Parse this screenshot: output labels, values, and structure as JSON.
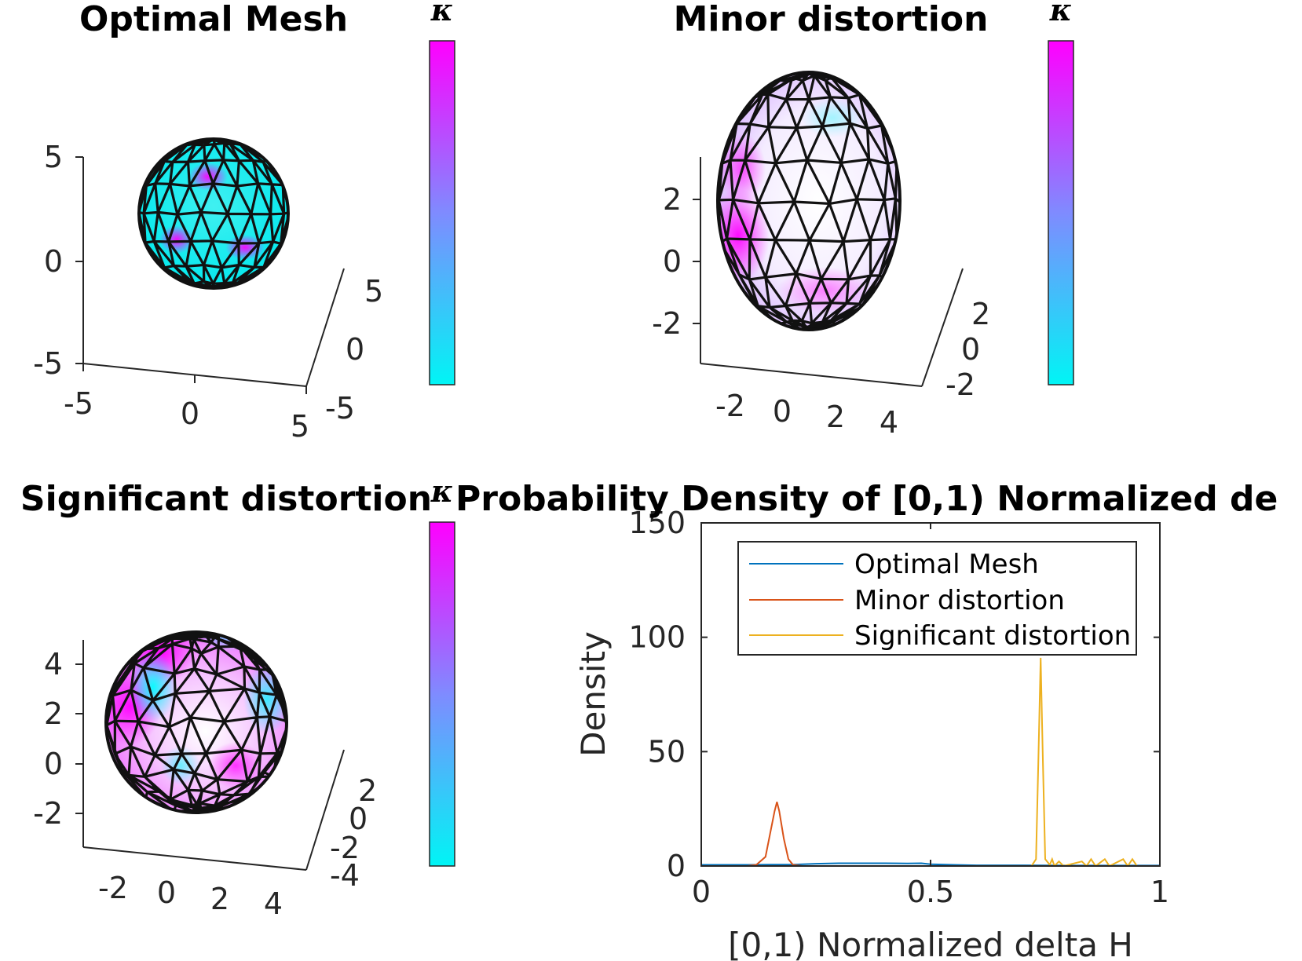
{
  "colors": {
    "kappa_low": "#00f5f5",
    "kappa_mid": "#7f8bff",
    "kappa_high": "#ff00ff",
    "series_blue": "#0072bd",
    "series_orange": "#d95319",
    "series_yellow": "#edb120"
  },
  "colorbar_label": "κ",
  "chart_data": [
    {
      "type": "surface",
      "title": "Optimal Mesh",
      "shape": "sphere",
      "coloring": "mostly cyan with small magenta patches",
      "z_ticks": [
        "5",
        "0",
        "-5"
      ],
      "x_ticks": [
        "-5",
        "0",
        "5"
      ],
      "y_ticks": [
        "5",
        "0",
        "-5"
      ],
      "colorbar": "κ"
    },
    {
      "type": "surface",
      "title": "Minor distortion",
      "shape": "ellipsoid",
      "coloring": "mostly white-lavender with magenta on left side",
      "z_ticks": [
        "2",
        "0",
        "-2"
      ],
      "x_ticks": [
        "-2",
        "0",
        "2",
        "4"
      ],
      "y_ticks": [
        "2",
        "0",
        "-2"
      ],
      "colorbar": "κ"
    },
    {
      "type": "surface",
      "title": "Significant distortion",
      "shape": "distorted sphere",
      "coloring": "mixed magenta, white and cyan",
      "z_ticks": [
        "4",
        "2",
        "0",
        "-2"
      ],
      "x_ticks": [
        "-2",
        "0",
        "2",
        "4"
      ],
      "y_ticks": [
        "2",
        "0",
        "-2",
        "-4"
      ],
      "colorbar": "κ"
    },
    {
      "type": "line",
      "title": "Probability Density of [0,1) Normalized de",
      "xlabel": "[0,1) Normalized delta H",
      "ylabel": "Density",
      "xlim": [
        0,
        1
      ],
      "ylim": [
        0,
        150
      ],
      "x_ticks": [
        "0",
        "0.5",
        "1"
      ],
      "y_ticks": [
        "0",
        "50",
        "100",
        "150"
      ],
      "legend_position": "top-right",
      "series": [
        {
          "name": "Optimal Mesh",
          "color": "#0072bd",
          "points": [
            [
              0,
              0.5
            ],
            [
              0.1,
              0.5
            ],
            [
              0.15,
              0.6
            ],
            [
              0.2,
              0.6
            ],
            [
              0.25,
              1
            ],
            [
              0.3,
              1.2
            ],
            [
              0.35,
              1.2
            ],
            [
              0.4,
              1.2
            ],
            [
              0.45,
              1.1
            ],
            [
              0.48,
              1.2
            ],
            [
              0.5,
              0.8
            ],
            [
              0.55,
              0.5
            ],
            [
              0.6,
              0.3
            ],
            [
              0.7,
              0.3
            ],
            [
              0.8,
              0.2
            ],
            [
              0.9,
              0.2
            ],
            [
              1,
              0.2
            ]
          ]
        },
        {
          "name": "Minor distortion",
          "color": "#d95319",
          "points": [
            [
              0,
              0
            ],
            [
              0.1,
              0
            ],
            [
              0.12,
              0.5
            ],
            [
              0.14,
              4
            ],
            [
              0.15,
              14
            ],
            [
              0.16,
              24
            ],
            [
              0.165,
              28
            ],
            [
              0.17,
              24
            ],
            [
              0.18,
              12
            ],
            [
              0.19,
              3
            ],
            [
              0.2,
              0.5
            ],
            [
              0.22,
              0
            ],
            [
              0.5,
              0
            ],
            [
              0.6,
              0
            ],
            [
              0.7,
              0
            ],
            [
              1,
              0
            ]
          ]
        },
        {
          "name": "Significant distortion",
          "color": "#edb120",
          "points": [
            [
              0,
              0
            ],
            [
              0.5,
              0
            ],
            [
              0.72,
              0
            ],
            [
              0.73,
              3
            ],
            [
              0.735,
              45
            ],
            [
              0.74,
              91
            ],
            [
              0.745,
              45
            ],
            [
              0.75,
              3
            ],
            [
              0.76,
              0.5
            ],
            [
              0.765,
              3
            ],
            [
              0.77,
              0
            ],
            [
              0.78,
              2
            ],
            [
              0.79,
              0
            ],
            [
              0.83,
              2
            ],
            [
              0.84,
              0
            ],
            [
              0.85,
              3
            ],
            [
              0.86,
              0
            ],
            [
              0.88,
              3
            ],
            [
              0.89,
              0
            ],
            [
              0.92,
              3
            ],
            [
              0.93,
              0
            ],
            [
              0.94,
              3
            ],
            [
              0.95,
              0
            ],
            [
              1,
              0
            ]
          ]
        }
      ]
    }
  ]
}
